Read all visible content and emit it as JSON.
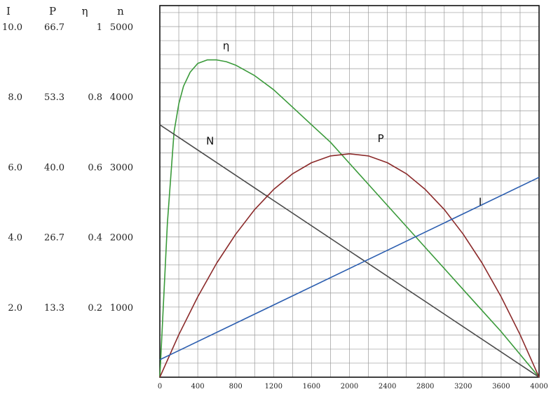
{
  "chart_data": {
    "type": "line",
    "xlim": [
      0,
      4000
    ],
    "x_ticks": [
      "0",
      "400",
      "800",
      "1200",
      "1600",
      "2000",
      "2400",
      "2800",
      "3200",
      "3600",
      "4000"
    ],
    "x_tick_values": [
      0,
      400,
      800,
      1200,
      1600,
      2000,
      2400,
      2800,
      3200,
      3600,
      4000
    ],
    "grid": true,
    "y_axes": [
      {
        "header": "I",
        "ylim": [
          0,
          10
        ],
        "ticks": [
          "2.0",
          "4.0",
          "6.0",
          "8.0",
          "10.0"
        ]
      },
      {
        "header": "P",
        "ylim": [
          0,
          66.7
        ],
        "ticks": [
          "13.3",
          "26.7",
          "40.0",
          "53.3",
          "66.7"
        ]
      },
      {
        "header": "η",
        "ylim": [
          0,
          1
        ],
        "ticks": [
          "0.2",
          "0.4",
          "0.6",
          "0.8",
          "1"
        ]
      },
      {
        "header": "n",
        "ylim": [
          0,
          5000
        ],
        "ticks": [
          "1000",
          "2000",
          "3000",
          "4000",
          "5000"
        ]
      }
    ],
    "y_tick_fractions": [
      0.2,
      0.4,
      0.6,
      0.8,
      1.0
    ],
    "series": [
      {
        "name": "η",
        "axis": "η",
        "color": "#3a9a3a",
        "x": [
          0,
          80,
          150,
          200,
          250,
          320,
          400,
          500,
          600,
          700,
          800,
          1000,
          1200,
          1400,
          1600,
          1800,
          2000,
          2200,
          2400,
          2600,
          2800,
          3000,
          3200,
          3400,
          3600,
          3800,
          4000
        ],
        "values": [
          0,
          0.44,
          0.7,
          0.78,
          0.83,
          0.87,
          0.895,
          0.905,
          0.905,
          0.9,
          0.89,
          0.86,
          0.82,
          0.77,
          0.72,
          0.67,
          0.61,
          0.55,
          0.49,
          0.43,
          0.37,
          0.31,
          0.25,
          0.19,
          0.13,
          0.065,
          0
        ]
      },
      {
        "name": "N",
        "axis": "n",
        "color": "#4a4a4a",
        "x": [
          0,
          4000
        ],
        "values": [
          3600,
          0
        ]
      },
      {
        "name": "P",
        "axis": "P",
        "color": "#8b2a2a",
        "x": [
          0,
          200,
          400,
          600,
          800,
          1000,
          1200,
          1400,
          1600,
          1800,
          2000,
          2200,
          2400,
          2600,
          2800,
          3000,
          3200,
          3400,
          3600,
          3800,
          4000
        ],
        "values": [
          0,
          8.1,
          15.3,
          21.7,
          27.2,
          31.9,
          35.7,
          38.7,
          40.8,
          42.1,
          42.5,
          42.1,
          40.8,
          38.7,
          35.7,
          31.9,
          27.2,
          21.7,
          15.3,
          8.1,
          0
        ]
      },
      {
        "name": "I",
        "axis": "I",
        "color": "#2d5fb0",
        "x": [
          0,
          4000
        ],
        "values": [
          0.5,
          5.7
        ]
      }
    ],
    "annotations": [
      {
        "text": "η",
        "x": 700,
        "axis": "η",
        "y": 0.935
      },
      {
        "text": "N",
        "x": 530,
        "axis": "n",
        "y": 3320
      },
      {
        "text": "P",
        "x": 2330,
        "axis": "P",
        "y": 44.7
      },
      {
        "text": "I",
        "x": 3380,
        "axis": "I",
        "y": 4.9
      }
    ]
  }
}
